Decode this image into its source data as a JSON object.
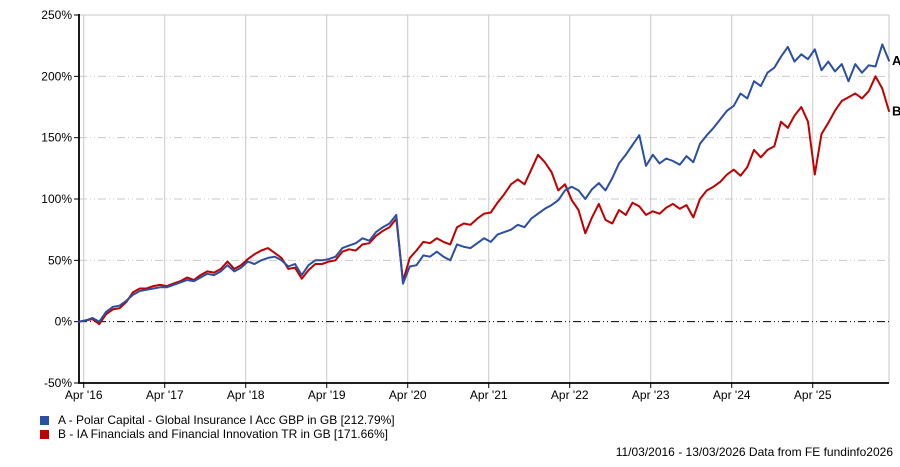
{
  "chart_data": {
    "type": "line",
    "title": "",
    "frequency": "monthly",
    "start_month": "2016-03",
    "end_month": "2026-03",
    "ylim": [
      -50,
      250
    ],
    "grid_color": "#c9c9c9",
    "axis_color": "#000000",
    "x_axis": {
      "tick_labels": [
        "Apr '16",
        "Apr '17",
        "Apr '18",
        "Apr '19",
        "Apr '20",
        "Apr '21",
        "Apr '22",
        "Apr '23",
        "Apr '24",
        "Apr '25"
      ]
    },
    "y_axis": {
      "tick_labels": [
        "250%",
        "200%",
        "150%",
        "100%",
        "50%",
        "0%",
        "-50%"
      ],
      "tick_values": [
        250,
        200,
        150,
        100,
        50,
        0,
        -50
      ],
      "unit": "%"
    },
    "series": [
      {
        "id": "A",
        "name": "Polar Capital - Global Insurance I Acc GBP in GB",
        "final_return": "212.79%",
        "color": "#2b4fa2",
        "values": [
          0,
          1,
          3,
          0,
          8,
          12,
          13,
          17,
          22,
          25,
          26,
          27,
          28,
          28,
          30,
          32,
          34,
          33,
          36,
          39,
          38,
          41,
          46,
          41,
          44,
          49,
          47,
          50,
          52,
          53,
          50,
          45,
          47,
          38,
          46,
          50,
          50,
          51,
          53,
          60,
          62,
          64,
          68,
          66,
          73,
          77,
          80,
          87,
          31,
          45,
          46,
          54,
          53,
          57,
          53,
          50,
          63,
          61,
          60,
          64,
          68,
          65,
          71,
          73,
          75,
          79,
          77,
          84,
          88,
          92,
          95,
          99,
          107,
          110,
          107,
          100,
          108,
          113,
          107,
          117,
          129,
          136,
          144,
          152,
          127,
          136,
          129,
          133,
          131,
          128,
          135,
          130,
          145,
          152,
          158,
          165,
          172,
          176,
          186,
          182,
          196,
          192,
          203,
          207,
          216,
          224,
          212,
          218,
          214,
          222,
          205,
          212,
          204,
          210,
          196,
          210,
          203,
          209,
          208,
          226,
          212.79
        ]
      },
      {
        "id": "B",
        "name": "IA Financials and Financial Innovation TR in GB",
        "final_return": "171.66%",
        "color": "#c00000",
        "values": [
          0,
          1,
          2,
          -2,
          6,
          10,
          11,
          16,
          24,
          27,
          27,
          29,
          30,
          29,
          31,
          33,
          36,
          34,
          38,
          41,
          40,
          43,
          49,
          43,
          46,
          51,
          55,
          58,
          60,
          56,
          52,
          43,
          44,
          35,
          42,
          47,
          47,
          49,
          50,
          57,
          59,
          58,
          63,
          64,
          70,
          74,
          77,
          84,
          33,
          52,
          58,
          65,
          64,
          68,
          65,
          63,
          77,
          80,
          79,
          84,
          88,
          89,
          97,
          104,
          112,
          116,
          112,
          124,
          136,
          130,
          122,
          107,
          112,
          99,
          91,
          72,
          85,
          96,
          83,
          80,
          91,
          87,
          97,
          94,
          87,
          90,
          88,
          93,
          96,
          92,
          95,
          85,
          100,
          107,
          110,
          114,
          120,
          124,
          119,
          126,
          140,
          134,
          140,
          143,
          163,
          158,
          168,
          175,
          163,
          120,
          153,
          162,
          172,
          180,
          183,
          186,
          182,
          188,
          200,
          190,
          171.66
        ]
      }
    ]
  },
  "legend": {
    "items": [
      {
        "color": "#2b4fa2",
        "label": "A - Polar Capital - Global Insurance I Acc GBP in GB [212.79%]"
      },
      {
        "color": "#c00000",
        "label": "B - IA Financials and Financial Innovation TR in GB [171.66%]"
      }
    ]
  },
  "footer": {
    "text": "11/03/2016 - 13/03/2026 Data from FE fundinfo2026"
  }
}
